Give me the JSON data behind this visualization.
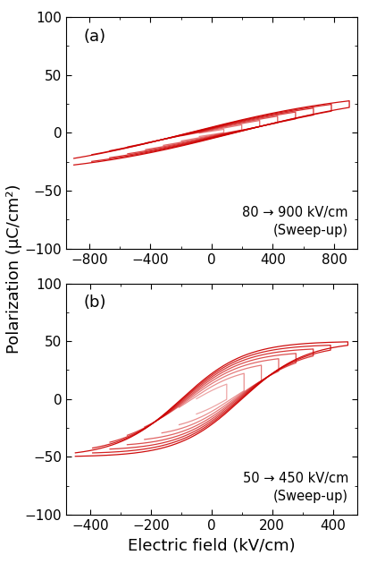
{
  "panel_a": {
    "label": "(a)",
    "annotation": "80 → 900 kV/cm\n(Sweep-up)",
    "xlim": [
      -950,
      950
    ],
    "ylim": [
      -100,
      100
    ],
    "xticks": [
      -800,
      -400,
      0,
      400,
      800
    ],
    "yticks": [
      -100,
      -50,
      0,
      50,
      100
    ],
    "n_loops": 8,
    "Emax_start": 80,
    "Emax_end": 900,
    "Psat": 38,
    "Pr": 5,
    "Ec": 150,
    "line_color": "#cc0000",
    "line_alpha_min": 0.45,
    "line_alpha_max": 0.95,
    "line_width": 0.9
  },
  "panel_b": {
    "label": "(b)",
    "annotation": "50 → 450 kV/cm\n(Sweep-up)",
    "xlim": [
      -480,
      480
    ],
    "ylim": [
      -100,
      100
    ],
    "xticks": [
      -400,
      -200,
      0,
      200,
      400
    ],
    "yticks": [
      -100,
      -50,
      0,
      50,
      100
    ],
    "n_loops": 8,
    "Emax_start": 50,
    "Emax_end": 450,
    "Psat": 50,
    "Pr": 22,
    "Ec": 100,
    "line_color": "#cc0000",
    "line_alpha_min": 0.35,
    "line_alpha_max": 0.95,
    "line_width": 0.9
  },
  "ylabel": "Polarization (μC/cm²)",
  "xlabel": "Electric field (kV/cm)",
  "label_fontsize": 13,
  "tick_fontsize": 11,
  "annot_fontsize": 10.5
}
